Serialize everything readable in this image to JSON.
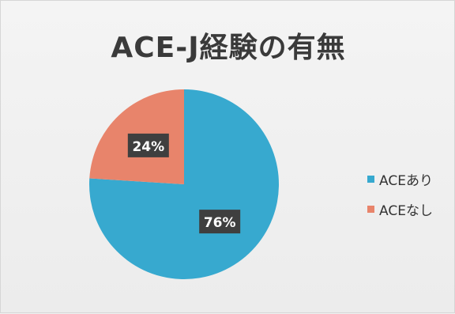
{
  "chart_data": {
    "type": "pie",
    "title": "ACE-J経験の有無",
    "categories": [
      "ACEあり",
      "ACEなし"
    ],
    "values": [
      76,
      24
    ],
    "data_labels": [
      "76%",
      "24%"
    ],
    "colors": [
      "#37a9cf",
      "#e8846b"
    ],
    "legend_position": "right",
    "start_angle": "12 o'clock, clockwise"
  }
}
